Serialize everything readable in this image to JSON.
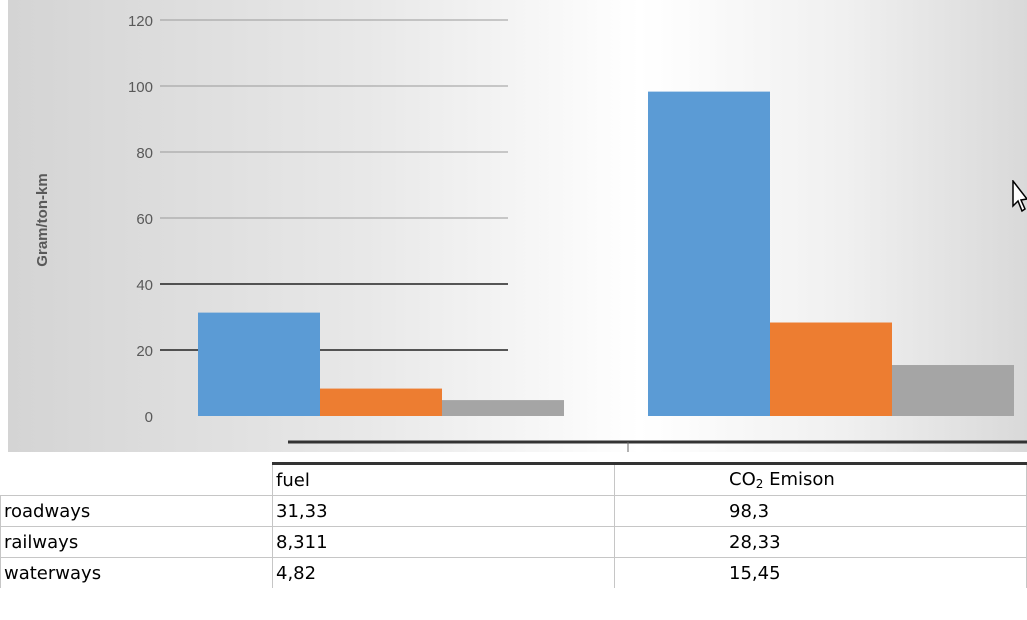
{
  "chart_data": {
    "type": "bar",
    "categories": [
      "fuel",
      "CO2 Emison"
    ],
    "series": [
      {
        "name": "roadways",
        "values": [
          31.33,
          98.3
        ],
        "color": "#5b9bd5"
      },
      {
        "name": "railways",
        "values": [
          8.311,
          28.33
        ],
        "color": "#ed7d31"
      },
      {
        "name": "waterways",
        "values": [
          4.82,
          15.45
        ],
        "color": "#a5a5a5"
      }
    ],
    "ylabel": "Gram/ton-km",
    "ylim": [
      0,
      120
    ],
    "yticks": [
      "0",
      "20",
      "40",
      "60",
      "80",
      "100",
      "120"
    ],
    "grid": true
  },
  "table": {
    "header": [
      "",
      "fuel",
      "CO",
      "2",
      " Emison"
    ],
    "rows": [
      [
        "roadways",
        "31,33",
        "98,3"
      ],
      [
        "railways",
        "8,311",
        "28,33"
      ],
      [
        "waterways",
        "4,82",
        "15,45"
      ]
    ]
  }
}
